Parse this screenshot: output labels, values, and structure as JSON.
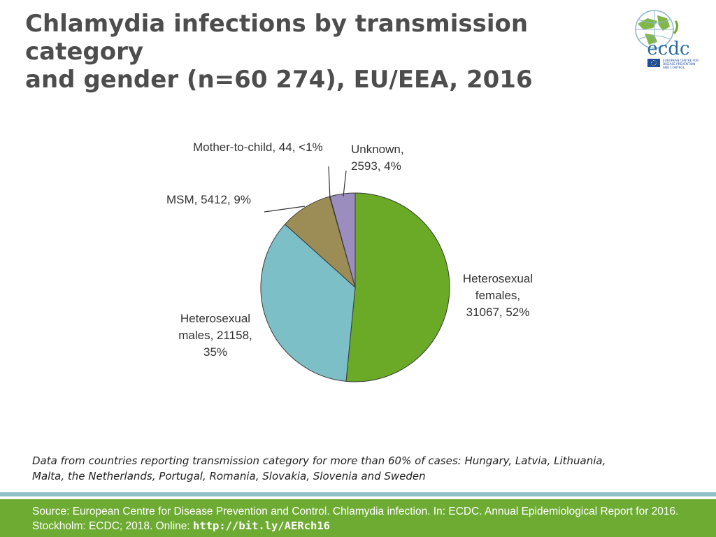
{
  "slide": {
    "title_line1": "Chlamydia infections by transmission category",
    "title_line2": "and gender (n=60 274), EU/EEA, 2016",
    "note_line1": "Data from countries reporting transmission category for more than 60% of cases: Hungary, Latvia, Lithuania,",
    "note_line2": "Malta, the Netherlands, Portugal, Romania, Slovakia, Slovenia and Sweden",
    "source_text": "Source: European Centre for Disease Prevention and Control. Chlamydia infection. In: ECDC. Annual Epidemiological Report for 2016. Stockholm: ECDC; 2018. Online: ",
    "source_link": "http://bit.ly/AERch16"
  },
  "logo": {
    "wordmark": "ecdc",
    "tagline_1": "EUROPEAN CENTRE FOR",
    "tagline_2": "DISEASE PREVENTION",
    "tagline_3": "AND CONTROL"
  },
  "colors": {
    "title": "#4d4d4d",
    "footer_bg": "#6eab32",
    "footer_stripe": "#8fc1c8"
  },
  "chart_data": {
    "type": "pie",
    "title": "Chlamydia infections by transmission category and gender (n=60 274), EU/EEA, 2016",
    "total": 60274,
    "start": "12 o'clock, clockwise",
    "slices": [
      {
        "name": "Heterosexual females",
        "value": 31067,
        "percent": "52%",
        "color": "#6aaa27",
        "label_lines": [
          "Heterosexual",
          "females,",
          "31067, 52%"
        ]
      },
      {
        "name": "Heterosexual males",
        "value": 21158,
        "percent": "35%",
        "color": "#7dbfc6",
        "label_lines": [
          "Heterosexual",
          "males, 21158,",
          "35%"
        ]
      },
      {
        "name": "MSM",
        "value": 5412,
        "percent": "9%",
        "color": "#9c8d57",
        "label_lines": [
          "MSM, 5412, 9%"
        ]
      },
      {
        "name": "Mother-to-child",
        "value": 44,
        "percent": "<1%",
        "color": "#c0504d",
        "label_lines": [
          "Mother-to-child, 44, <1%"
        ]
      },
      {
        "name": "Unknown",
        "value": 2593,
        "percent": "4%",
        "color": "#9b8ebf",
        "label_lines": [
          "Unknown,",
          "2593, 4%"
        ]
      }
    ]
  }
}
